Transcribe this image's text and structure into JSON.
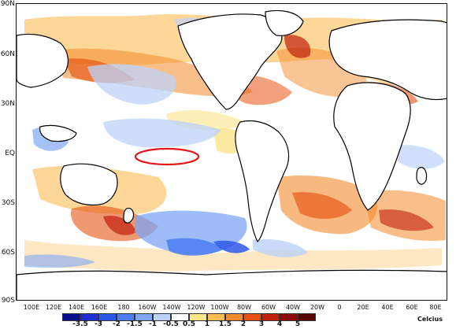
{
  "map": {
    "lat_labels": [
      "90N",
      "60N",
      "30N",
      "EQ",
      "30S",
      "60S",
      "90S"
    ],
    "lon_labels": [
      "100E",
      "120E",
      "140E",
      "160E",
      "180",
      "160W",
      "140W",
      "120W",
      "100W",
      "80W",
      "60W",
      "40W",
      "20W",
      "0",
      "20E",
      "40E",
      "60E",
      "80E"
    ],
    "highlight": "red-ellipse-equatorial-pacific"
  },
  "colorbar": {
    "unit": "Celcius",
    "ticks": [
      "-3.5",
      "-3",
      "-2",
      "-1.5",
      "-1",
      "-0.5",
      "0.5",
      "1",
      "1.5",
      "2",
      "3",
      "4",
      "5"
    ],
    "colors": [
      "#08108a",
      "#1d2fd0",
      "#2d58e8",
      "#4b7ef0",
      "#7ea6f5",
      "#bcd2f8",
      "#ffffff",
      "#fde58a",
      "#fbbd53",
      "#f48b2c",
      "#e55312",
      "#c0200b",
      "#8c0b0b",
      "#5a0303"
    ]
  },
  "colors": {
    "land": "#ffffff",
    "coast": "#000000",
    "warm": "#f7a33a",
    "cool": "#7ea6f5",
    "highlight": "#e21818"
  }
}
